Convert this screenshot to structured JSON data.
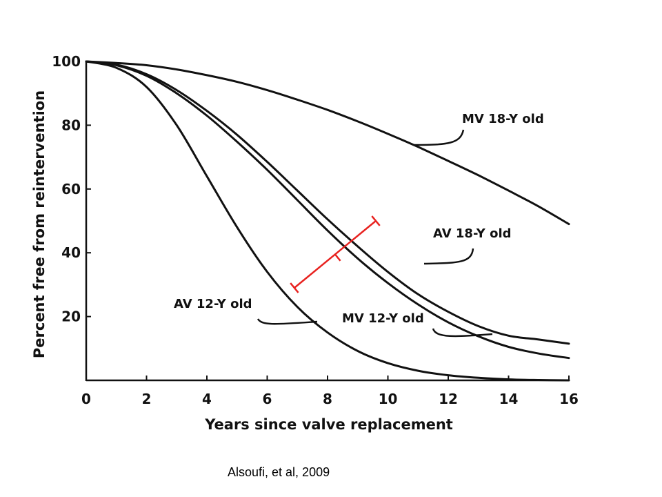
{
  "chart_data": {
    "type": "line",
    "title": "",
    "xlabel": "Years since valve replacement",
    "ylabel": "Percent free from reintervention",
    "xlim": [
      0,
      16
    ],
    "ylim": [
      0,
      100
    ],
    "xticks": [
      0,
      2,
      4,
      6,
      8,
      10,
      12,
      14,
      16
    ],
    "yticks": [
      20,
      40,
      60,
      80,
      100
    ],
    "grid": false,
    "series": [
      {
        "name": "MV 18-Y old",
        "x": [
          0,
          1,
          2,
          3,
          4,
          5,
          6,
          7,
          8,
          9,
          10,
          11,
          12,
          13,
          14,
          15,
          16
        ],
        "values": [
          100,
          99.5,
          98.8,
          97.5,
          95.7,
          93.6,
          91,
          88,
          84.8,
          81.2,
          77.3,
          73.2,
          68.8,
          64.3,
          59.5,
          54.5,
          49
        ]
      },
      {
        "name": "AV 18-Y old",
        "x": [
          0,
          1,
          2,
          3,
          4,
          5,
          6,
          7,
          8,
          9,
          10,
          11,
          12,
          13,
          14,
          15,
          16
        ],
        "values": [
          100,
          99,
          96,
          91,
          84.5,
          77,
          68.5,
          59.5,
          50.5,
          42,
          34,
          27,
          21.5,
          17,
          14,
          12.8,
          11.5
        ]
      },
      {
        "name": "MV 12-Y old",
        "x": [
          0,
          1,
          2,
          3,
          4,
          5,
          6,
          7,
          8,
          9,
          10,
          11,
          12,
          13,
          14,
          15,
          16
        ],
        "values": [
          100,
          98.8,
          95.5,
          90,
          83,
          74.8,
          66,
          56.5,
          47,
          38.2,
          30.5,
          23.8,
          18.2,
          13.8,
          10.5,
          8.4,
          7
        ]
      },
      {
        "name": "AV 12-Y old",
        "x": [
          0,
          1,
          2,
          3,
          4,
          5,
          6,
          7,
          8,
          9,
          10,
          11,
          12,
          13,
          14,
          15,
          16
        ],
        "values": [
          100,
          98,
          92,
          80,
          64,
          48,
          34,
          23,
          15,
          9.2,
          5.4,
          3,
          1.6,
          0.8,
          0.3,
          0.1,
          0
        ]
      }
    ],
    "annotations": [
      {
        "type": "red-bracket",
        "from": [
          6.9,
          29
        ],
        "to": [
          9.6,
          50
        ]
      }
    ],
    "labels": {
      "mv18": "MV 18-Y old",
      "av18": "AV 18-Y old",
      "mv12": "MV 12-Y old",
      "av12": "AV 12-Y old"
    },
    "colors": {
      "series": "#111111",
      "annotation": "#e8221f"
    }
  },
  "citation": "Alsoufi, et al, 2009"
}
